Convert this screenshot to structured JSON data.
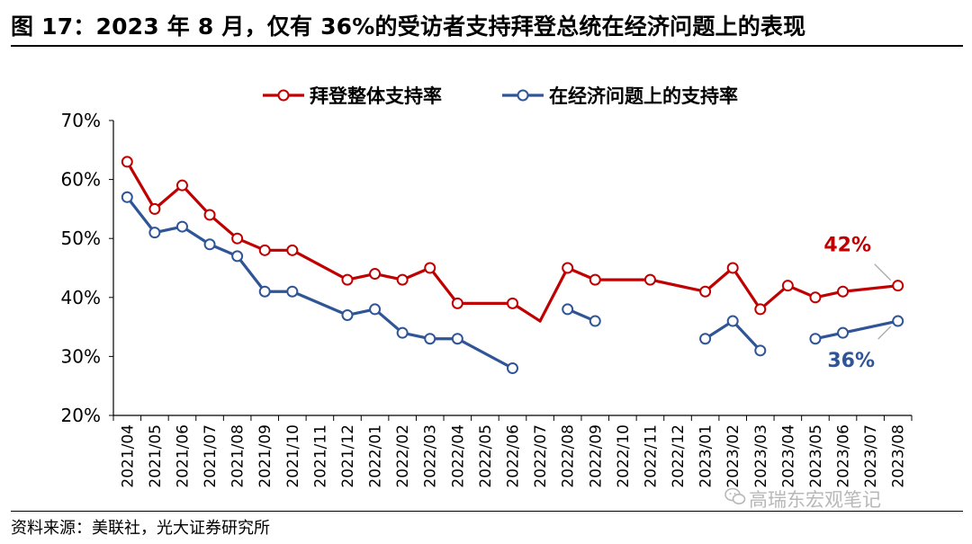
{
  "figure": {
    "title": "图 17：2023 年 8 月，仅有 36%的受访者支持拜登总统在经济问题上的表现",
    "source": "资料来源：美联社，光大证券研究所",
    "watermark": "高瑞东宏观笔记"
  },
  "chart_data": {
    "type": "line",
    "categories": [
      "2021/04",
      "2021/05",
      "2021/06",
      "2021/07",
      "2021/08",
      "2021/09",
      "2021/10",
      "2021/11",
      "2021/12",
      "2022/01",
      "2022/02",
      "2022/03",
      "2022/04",
      "2022/05",
      "2022/06",
      "2022/07",
      "2022/08",
      "2022/09",
      "2022/10",
      "2022/11",
      "2022/12",
      "2023/01",
      "2023/02",
      "2023/03",
      "2023/04",
      "2023/05",
      "2023/06",
      "2023/07",
      "2023/08"
    ],
    "yticks": [
      "20%",
      "30%",
      "40%",
      "50%",
      "60%",
      "70%"
    ],
    "ylim": [
      20,
      70
    ],
    "legend_position": "top-center",
    "series": [
      {
        "name": "拜登整体支持率",
        "color": "#c00000",
        "points": [
          {
            "x": "2021/04",
            "y": 63
          },
          {
            "x": "2021/05",
            "y": 55
          },
          {
            "x": "2021/06",
            "y": 59
          },
          {
            "x": "2021/07",
            "y": 54
          },
          {
            "x": "2021/08",
            "y": 50
          },
          {
            "x": "2021/09",
            "y": 48
          },
          {
            "x": "2021/10",
            "y": 48
          },
          {
            "x": "2021/12",
            "y": 43
          },
          {
            "x": "2022/01",
            "y": 44
          },
          {
            "x": "2022/02",
            "y": 43
          },
          {
            "x": "2022/03",
            "y": 45
          },
          {
            "x": "2022/04",
            "y": 39
          },
          {
            "x": "2022/06",
            "y": 39
          },
          {
            "x": "2022/07",
            "y": 36
          },
          {
            "x": "2022/08",
            "y": 45
          },
          {
            "x": "2022/09",
            "y": 43
          },
          {
            "x": "2022/11",
            "y": 43
          },
          {
            "x": "2023/01",
            "y": 41
          },
          {
            "x": "2023/02",
            "y": 45
          },
          {
            "x": "2023/03",
            "y": 38
          },
          {
            "x": "2023/04",
            "y": 42
          },
          {
            "x": "2023/05",
            "y": 40
          },
          {
            "x": "2023/06",
            "y": 41
          },
          {
            "x": "2023/08",
            "y": 42
          }
        ],
        "segments": [
          [
            0,
            13
          ],
          [
            13,
            23
          ]
        ],
        "markers": [
          true,
          true,
          true,
          true,
          true,
          true,
          true,
          true,
          true,
          true,
          true,
          true,
          true,
          false,
          true,
          true,
          true,
          true,
          true,
          true,
          true,
          true,
          true,
          true
        ]
      },
      {
        "name": "在经济问题上的支持率",
        "color": "#2f5597",
        "points": [
          {
            "x": "2021/04",
            "y": 57
          },
          {
            "x": "2021/05",
            "y": 51
          },
          {
            "x": "2021/06",
            "y": 52
          },
          {
            "x": "2021/07",
            "y": 49
          },
          {
            "x": "2021/08",
            "y": 47
          },
          {
            "x": "2021/09",
            "y": 41
          },
          {
            "x": "2021/10",
            "y": 41
          },
          {
            "x": "2021/12",
            "y": 37
          },
          {
            "x": "2022/01",
            "y": 38
          },
          {
            "x": "2022/02",
            "y": 34
          },
          {
            "x": "2022/03",
            "y": 33
          },
          {
            "x": "2022/04",
            "y": 33
          },
          {
            "x": "2022/06",
            "y": 28
          },
          {
            "x": "2022/08",
            "y": 38
          },
          {
            "x": "2022/09",
            "y": 36
          },
          {
            "x": "2023/01",
            "y": 33
          },
          {
            "x": "2023/02",
            "y": 36
          },
          {
            "x": "2023/03",
            "y": 31
          },
          {
            "x": "2023/05",
            "y": 33
          },
          {
            "x": "2023/06",
            "y": 34
          },
          {
            "x": "2023/08",
            "y": 36
          }
        ],
        "segments": [
          [
            0,
            12
          ],
          [
            13,
            14
          ],
          [
            15,
            17
          ],
          [
            18,
            20
          ]
        ],
        "markers": [
          true,
          true,
          true,
          true,
          true,
          true,
          true,
          true,
          true,
          true,
          true,
          true,
          true,
          true,
          true,
          true,
          true,
          true,
          true,
          true,
          true
        ]
      }
    ],
    "annotations": [
      {
        "text": "42%",
        "series": 0,
        "point_index": 23,
        "color": "#c00000"
      },
      {
        "text": "36%",
        "series": 1,
        "point_index": 20,
        "color": "#2f5597"
      }
    ]
  }
}
